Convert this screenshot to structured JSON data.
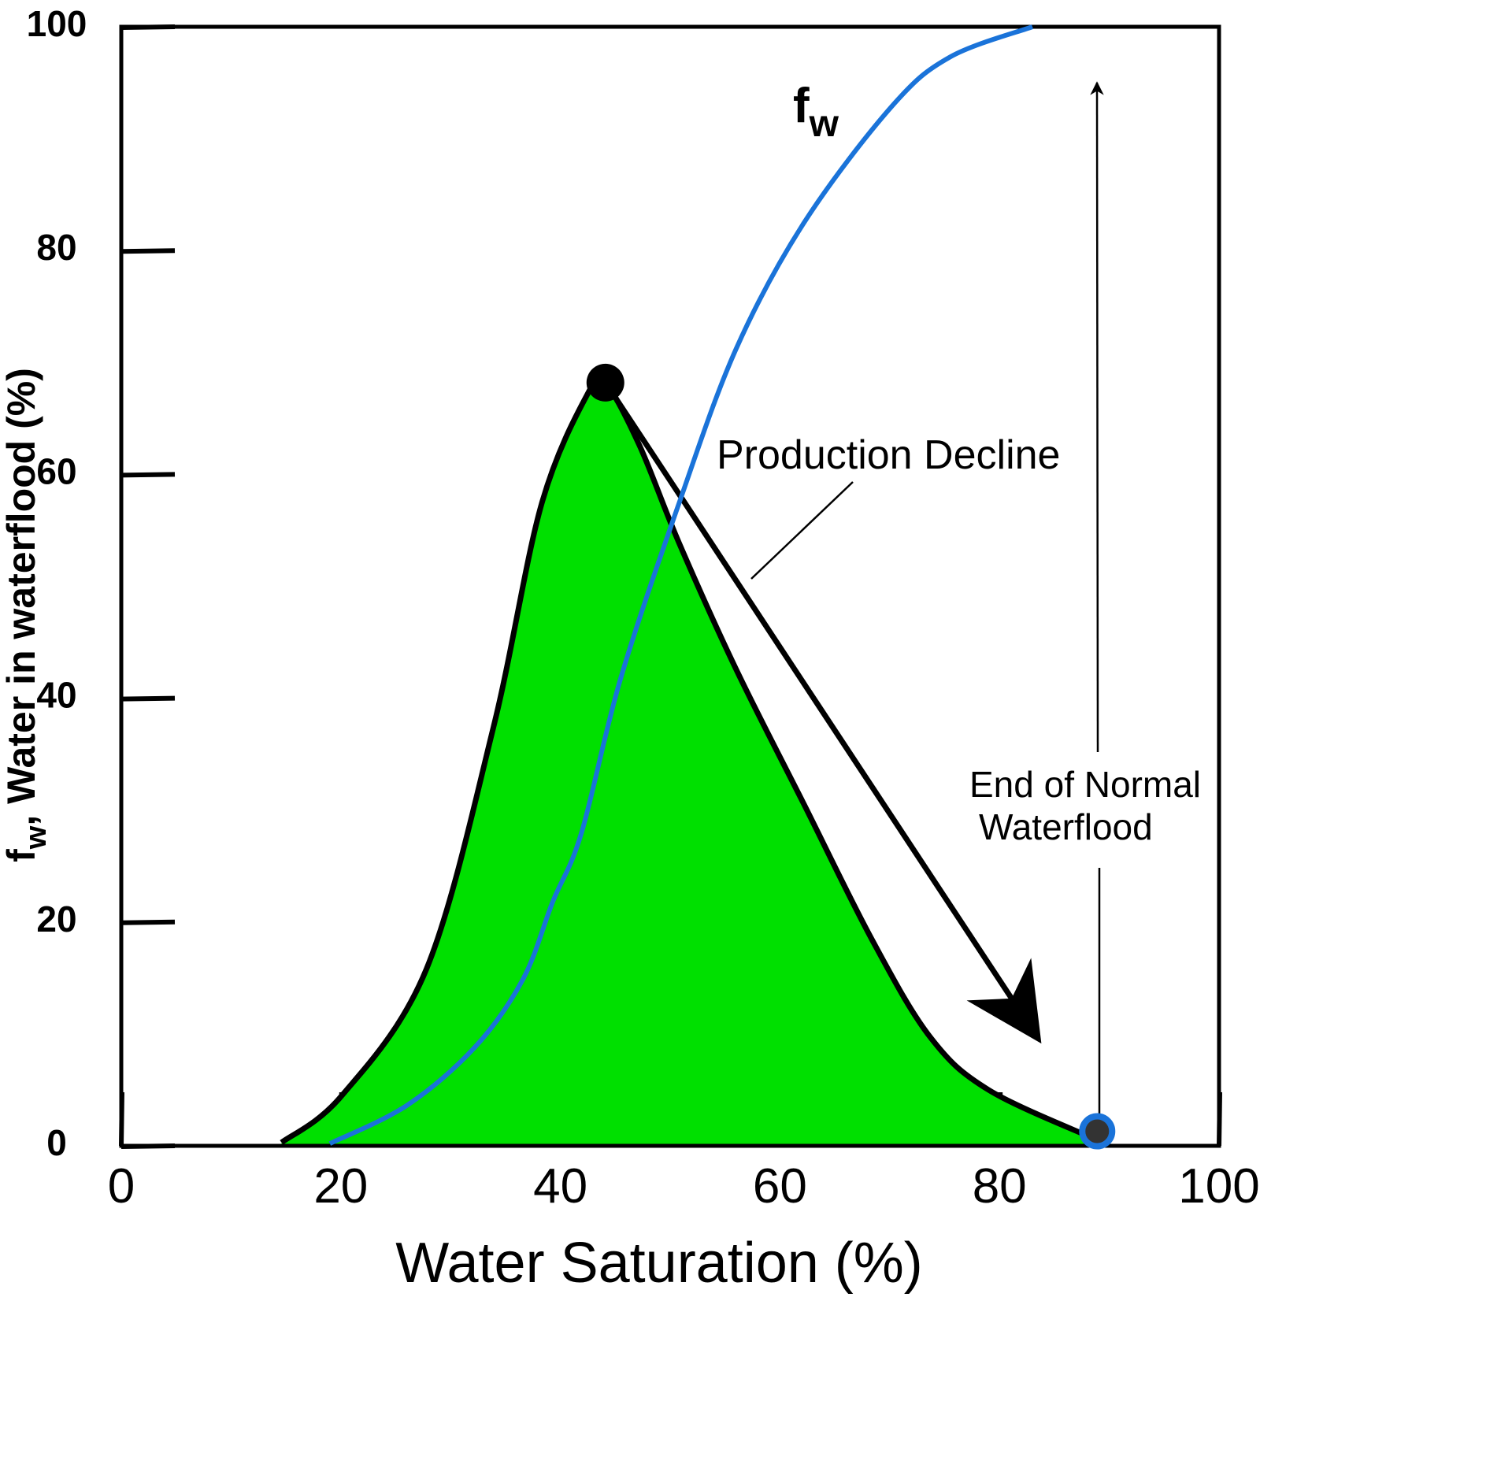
{
  "chart_data": {
    "type": "line",
    "xlabel": "Water Saturation (%)",
    "ylabel_f": "f",
    "ylabel_sub": "w",
    "ylabel": ", Water in waterflood (%)",
    "xlim": [
      0,
      100
    ],
    "xticks": [
      0,
      20,
      40,
      60,
      80,
      100
    ],
    "ylim": [
      0,
      100
    ],
    "yticks": [
      0,
      20,
      40,
      60,
      80,
      100
    ],
    "series": [
      {
        "fill": "#00e000",
        "color": "#000000",
        "x": [
          14.6,
          20.1,
          27.8,
          33.9,
          38.3,
          42.7,
          44.1,
          47.2,
          50.8,
          56,
          62.2,
          68.4,
          73.7,
          79,
          88.7
        ],
        "values": [
          0.3,
          4.5,
          15.8,
          37.4,
          57.4,
          67.6,
          68.2,
          62.6,
          53.9,
          42.6,
          30.5,
          18.4,
          9.7,
          5,
          0.6
        ]
      },
      {
        "color": "#1a73d9",
        "x": [
          19,
          26,
          32.2,
          36.6,
          39.3,
          41.9,
          45.5,
          50.8,
          56,
          62.2,
          70.2,
          75.5,
          83
        ],
        "values": [
          0.2,
          3.6,
          8.8,
          14.9,
          21.8,
          27.9,
          41.8,
          57.4,
          71.2,
          82.5,
          92.9,
          97.3,
          100
        ]
      }
    ],
    "points": [
      {
        "x": 44.1,
        "y": 68.2,
        "color": "#000000"
      },
      {
        "x": 88.9,
        "y": 1.3,
        "color": "#333333",
        "edge": "#1a73d9"
      }
    ],
    "fw_label": "f",
    "fw_sub": "w",
    "decline_label": "Production Decline",
    "end_label_1": "End of Normal",
    "end_label_2": "Waterflood"
  }
}
